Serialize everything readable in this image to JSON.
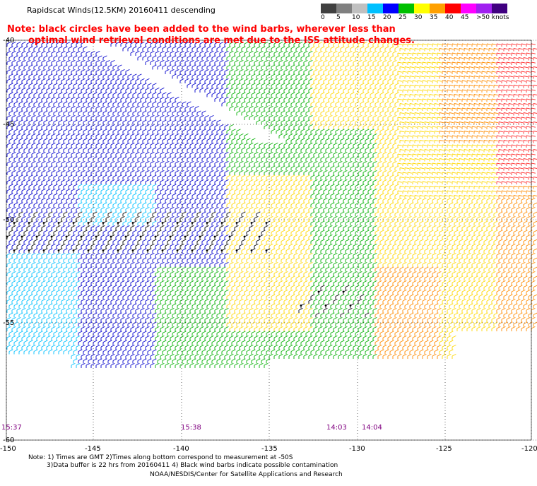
{
  "header": {
    "title": "Rapidscat Winds(12.5KM) 20160411 descending",
    "note_line1": "Note: black circles have been added to the wind barbs, wherever less than",
    "note_line2": "optimal wind retrieval conditions are met due to the ISS attitude changes."
  },
  "legend": {
    "labels": [
      "0",
      "5",
      "10",
      "15",
      "20",
      "25",
      "30",
      "35",
      "40",
      "45",
      ">50 knots"
    ],
    "colors": [
      "#404040",
      "#808080",
      "#c0c0c0",
      "#00c0ff",
      "#0000ff",
      "#00c000",
      "#ffff00",
      "#ffa000",
      "#ff0000",
      "#ff00ff",
      "#a020f0",
      "#400080"
    ]
  },
  "map": {
    "lat_labels": [
      "-40",
      "-45",
      "-50",
      "-55",
      "-60"
    ],
    "lon_labels": [
      "-150",
      "-145",
      "-140",
      "-135",
      "-130",
      "-125",
      "-120"
    ],
    "time_labels": [
      "15:37",
      "15:38",
      "14:03",
      "14:04"
    ],
    "wind_colors": {
      "light": "#00c0ff",
      "blue": "#0000cd",
      "green": "#00b000",
      "yellow": "#ffd700",
      "orange": "#ff8c00",
      "red": "#ff3030",
      "black": "#000000"
    }
  },
  "footer": {
    "line1": "Note: 1) Times are GMT 2)Times along bottom correspond to measurement at -50S",
    "line2": "3)Data buffer is 22 hrs from 20160411 4) Black wind barbs indicate possible contamination",
    "line3": "NOAA/NESDIS/Center for Satellite Applications and Research"
  }
}
